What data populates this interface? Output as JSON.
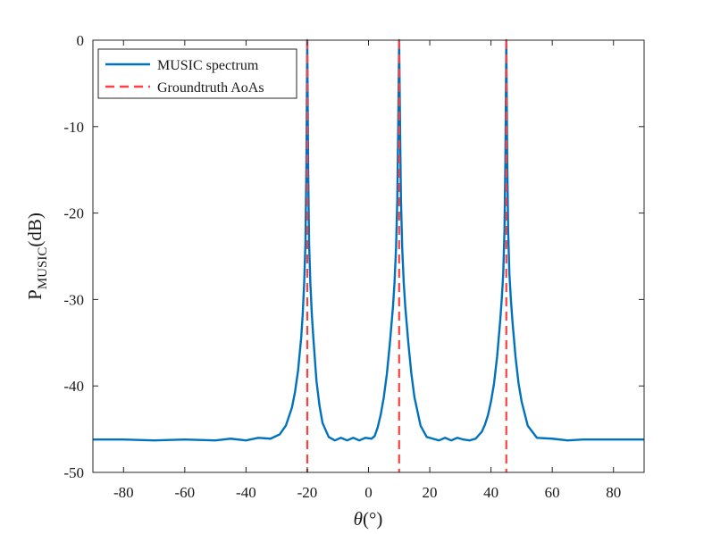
{
  "chart_data": {
    "type": "line",
    "title": "",
    "xlabel_symbol": "θ",
    "xlabel_unit": "(°)",
    "ylabel_main": "P",
    "ylabel_sub": "MUSIC",
    "ylabel_unit": "(dB)",
    "xlim": [
      -90,
      90
    ],
    "ylim": [
      -50,
      0
    ],
    "xticks": [
      -80,
      -60,
      -40,
      -20,
      0,
      20,
      40,
      60,
      80
    ],
    "yticks": [
      0,
      -10,
      -20,
      -30,
      -40,
      -50
    ],
    "xtick_labels": [
      "-80",
      "-60",
      "-40",
      "-20",
      "0",
      "20",
      "40",
      "60",
      "80"
    ],
    "ytick_labels": [
      "0",
      "-10",
      "-20",
      "-30",
      "-40",
      "-50"
    ],
    "grid": false,
    "legend_position": "top-left",
    "colors": {
      "spectrum": "#0072BD",
      "groundtruth": "#FF4040"
    },
    "series": [
      {
        "name": "MUSIC spectrum",
        "style": "solid",
        "x": [
          -90,
          -80,
          -70,
          -60,
          -50,
          -45,
          -40,
          -36,
          -32,
          -29,
          -27,
          -25,
          -24,
          -23,
          -22,
          -21.5,
          -21,
          -20.6,
          -20.3,
          -20,
          -19.7,
          -19.4,
          -19,
          -18.5,
          -18,
          -17,
          -16,
          -15,
          -13,
          -11,
          -9,
          -7,
          -5,
          -3,
          -1,
          1,
          2,
          3,
          4,
          5,
          6,
          7,
          8,
          8.5,
          9,
          9.4,
          9.7,
          10,
          10.3,
          10.6,
          11,
          11.5,
          12,
          13,
          14,
          15,
          17,
          19,
          21,
          23,
          25,
          27,
          29,
          31,
          33,
          35,
          37,
          38,
          39,
          40,
          41,
          42,
          43,
          43.5,
          44,
          44.4,
          44.7,
          45,
          45.3,
          45.6,
          46,
          46.5,
          47,
          48,
          49,
          50,
          52,
          55,
          60,
          65,
          70,
          80,
          90
        ],
        "y": [
          -46.2,
          -46.2,
          -46.3,
          -46.2,
          -46.3,
          -46.1,
          -46.3,
          -46.0,
          -46.1,
          -45.6,
          -44.6,
          -42.5,
          -40.7,
          -38.2,
          -34.5,
          -31.8,
          -28.0,
          -23.5,
          -15.0,
          0,
          -15.0,
          -23.5,
          -28.0,
          -31.8,
          -34.5,
          -39.4,
          -42.3,
          -44.3,
          -45.9,
          -46.3,
          -46.0,
          -46.3,
          -46.0,
          -46.3,
          -46.0,
          -46.1,
          -45.8,
          -44.8,
          -43.3,
          -41.3,
          -38.6,
          -35.0,
          -30.8,
          -28.0,
          -24.0,
          -18.5,
          -10.0,
          0,
          -10.0,
          -18.5,
          -24.0,
          -28.0,
          -30.8,
          -35.0,
          -38.6,
          -41.3,
          -44.6,
          -45.9,
          -46.1,
          -46.3,
          -46.0,
          -46.3,
          -46.0,
          -46.2,
          -46.3,
          -46.1,
          -45.3,
          -44.5,
          -43.4,
          -41.8,
          -39.7,
          -36.6,
          -32.5,
          -30.0,
          -27.0,
          -22.0,
          -14.0,
          0,
          -14.0,
          -22.0,
          -27.0,
          -30.0,
          -32.5,
          -36.6,
          -39.7,
          -41.8,
          -44.6,
          -46.0,
          -46.1,
          -46.3,
          -46.2,
          -46.2,
          -46.2
        ]
      },
      {
        "name": "Groundtruth AoAs",
        "style": "dashed",
        "x_lines": [
          -20,
          10,
          45
        ]
      }
    ]
  }
}
